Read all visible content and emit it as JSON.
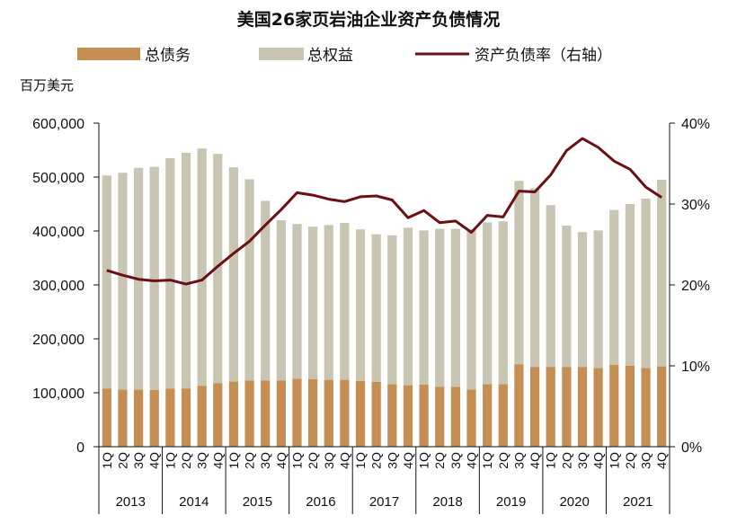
{
  "chart_data": {
    "type": "bar+line",
    "title": "美国26家页岩油企业资产负债情况",
    "unit_label": "百万美元",
    "legend": [
      "总债务",
      "总权益",
      "资产负债率（右轴）"
    ],
    "colors": {
      "debt": "#c58e52",
      "equity": "#c8c6b2",
      "ratio": "#6b0f14"
    },
    "y_left": {
      "min": 0,
      "max": 600000,
      "ticks": [
        0,
        100000,
        200000,
        300000,
        400000,
        500000,
        600000
      ],
      "tick_labels": [
        "0",
        "100,000",
        "200,000",
        "300,000",
        "400,000",
        "500,000",
        "600,000"
      ]
    },
    "y_right": {
      "min": 0,
      "max": 40,
      "ticks": [
        0,
        10,
        20,
        30,
        40
      ],
      "tick_labels": [
        "0%",
        "10%",
        "20%",
        "30%",
        "40%"
      ]
    },
    "quarter_labels": [
      "1Q",
      "2Q",
      "3Q",
      "4Q"
    ],
    "years": [
      "2013",
      "2014",
      "2015",
      "2016",
      "2017",
      "2018",
      "2019",
      "2020",
      "2021"
    ],
    "series": [
      {
        "name": "总债务",
        "values": [
          108000,
          106000,
          106000,
          105000,
          108000,
          108000,
          113000,
          118000,
          121000,
          123000,
          123000,
          123000,
          126000,
          125000,
          124000,
          124000,
          122000,
          120000,
          116000,
          114000,
          115000,
          111000,
          111000,
          106000,
          116000,
          116000,
          153000,
          148000,
          148000,
          148000,
          148000,
          146000,
          152000,
          150000,
          146000,
          149000
        ]
      },
      {
        "name": "总权益",
        "values": [
          395000,
          402000,
          411000,
          414000,
          427000,
          437000,
          440000,
          425000,
          397000,
          373000,
          333000,
          297000,
          287000,
          283000,
          287000,
          291000,
          281000,
          274000,
          276000,
          292000,
          286000,
          293000,
          293000,
          297000,
          300000,
          302000,
          340000,
          331000,
          300000,
          262000,
          250000,
          255000,
          287000,
          300000,
          314000,
          346000
        ]
      },
      {
        "name": "资产负债率（右轴）",
        "values": [
          21.8,
          21.2,
          20.7,
          20.5,
          20.6,
          20.1,
          20.6,
          22.3,
          23.9,
          25.4,
          27.4,
          29.3,
          31.4,
          31.1,
          30.6,
          30.3,
          30.9,
          31.0,
          30.5,
          28.3,
          29.2,
          27.7,
          27.9,
          26.5,
          28.6,
          28.4,
          31.6,
          31.5,
          33.6,
          36.6,
          38.1,
          37.0,
          35.3,
          34.3,
          32.1,
          30.8
        ]
      }
    ]
  }
}
